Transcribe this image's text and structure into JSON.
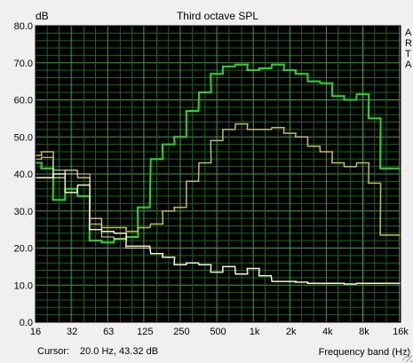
{
  "chart_data": {
    "type": "line",
    "title": "Third octave SPL",
    "ylabel": "dB",
    "xlabel": "Frequency band (Hz)",
    "ylim": [
      0,
      80
    ],
    "y_ticks": [
      "0.0",
      "10.0",
      "20.0",
      "30.0",
      "40.0",
      "50.0",
      "60.0",
      "70.0",
      "80.0"
    ],
    "x_ticks": [
      "16",
      "32",
      "63",
      "125",
      "250",
      "500",
      "1k",
      "2k",
      "4k",
      "8k",
      "16k"
    ],
    "x_bands": [
      16,
      20,
      25,
      31.5,
      40,
      50,
      63,
      80,
      100,
      125,
      160,
      200,
      250,
      315,
      400,
      500,
      630,
      800,
      1000,
      1250,
      1600,
      2000,
      2500,
      3150,
      4000,
      5000,
      6300,
      8000,
      10000,
      12500,
      16000
    ],
    "grid": true,
    "legend_letters": [
      "A",
      "R",
      "T",
      "A"
    ],
    "series": [
      {
        "color": "#22dd22",
        "width": 2,
        "values": [
          43,
          41.5,
          33,
          36,
          34,
          22,
          21.5,
          22.5,
          23,
          31,
          44,
          48,
          50,
          57,
          62,
          67,
          69,
          69.5,
          68,
          68.5,
          69.5,
          68,
          67,
          65,
          64.5,
          61,
          60,
          61.5,
          55,
          41.5,
          41.5
        ]
      },
      {
        "color": "#c8c040",
        "width": 1.5,
        "values": [
          45,
          46,
          39,
          41,
          39,
          28,
          25.5,
          25.5,
          24.5,
          25.5,
          26.5,
          30,
          31,
          38,
          43,
          49,
          52,
          53.5,
          52,
          52,
          52.5,
          51,
          50,
          47.5,
          46,
          43,
          42,
          43,
          37.5,
          23.5,
          23.5
        ]
      },
      {
        "color": "#f8f8c8",
        "width": 1.5,
        "values": [
          39,
          39,
          40,
          35,
          37,
          25,
          24.5,
          24,
          20.5,
          20.5,
          18.5,
          17.5,
          15.5,
          16,
          15.5,
          13.5,
          15,
          13,
          14.5,
          12.5,
          11,
          11,
          10.8,
          10.5,
          10.5,
          10.5,
          10.3,
          10.5,
          10.5,
          10.5,
          10.5
        ]
      },
      {
        "color": "#f0e0a0",
        "width": 1,
        "values": [
          44,
          44.5,
          41,
          40,
          40,
          26.5,
          23,
          22.5,
          20,
          20,
          null,
          null,
          null,
          null,
          null,
          null,
          null,
          null,
          null,
          null,
          null,
          null,
          null,
          null,
          null,
          null,
          null,
          null,
          null,
          null,
          null
        ]
      }
    ]
  },
  "status": {
    "cursor_label": "Cursor:",
    "cursor_value": "20.0 Hz, 43.32 dB"
  }
}
